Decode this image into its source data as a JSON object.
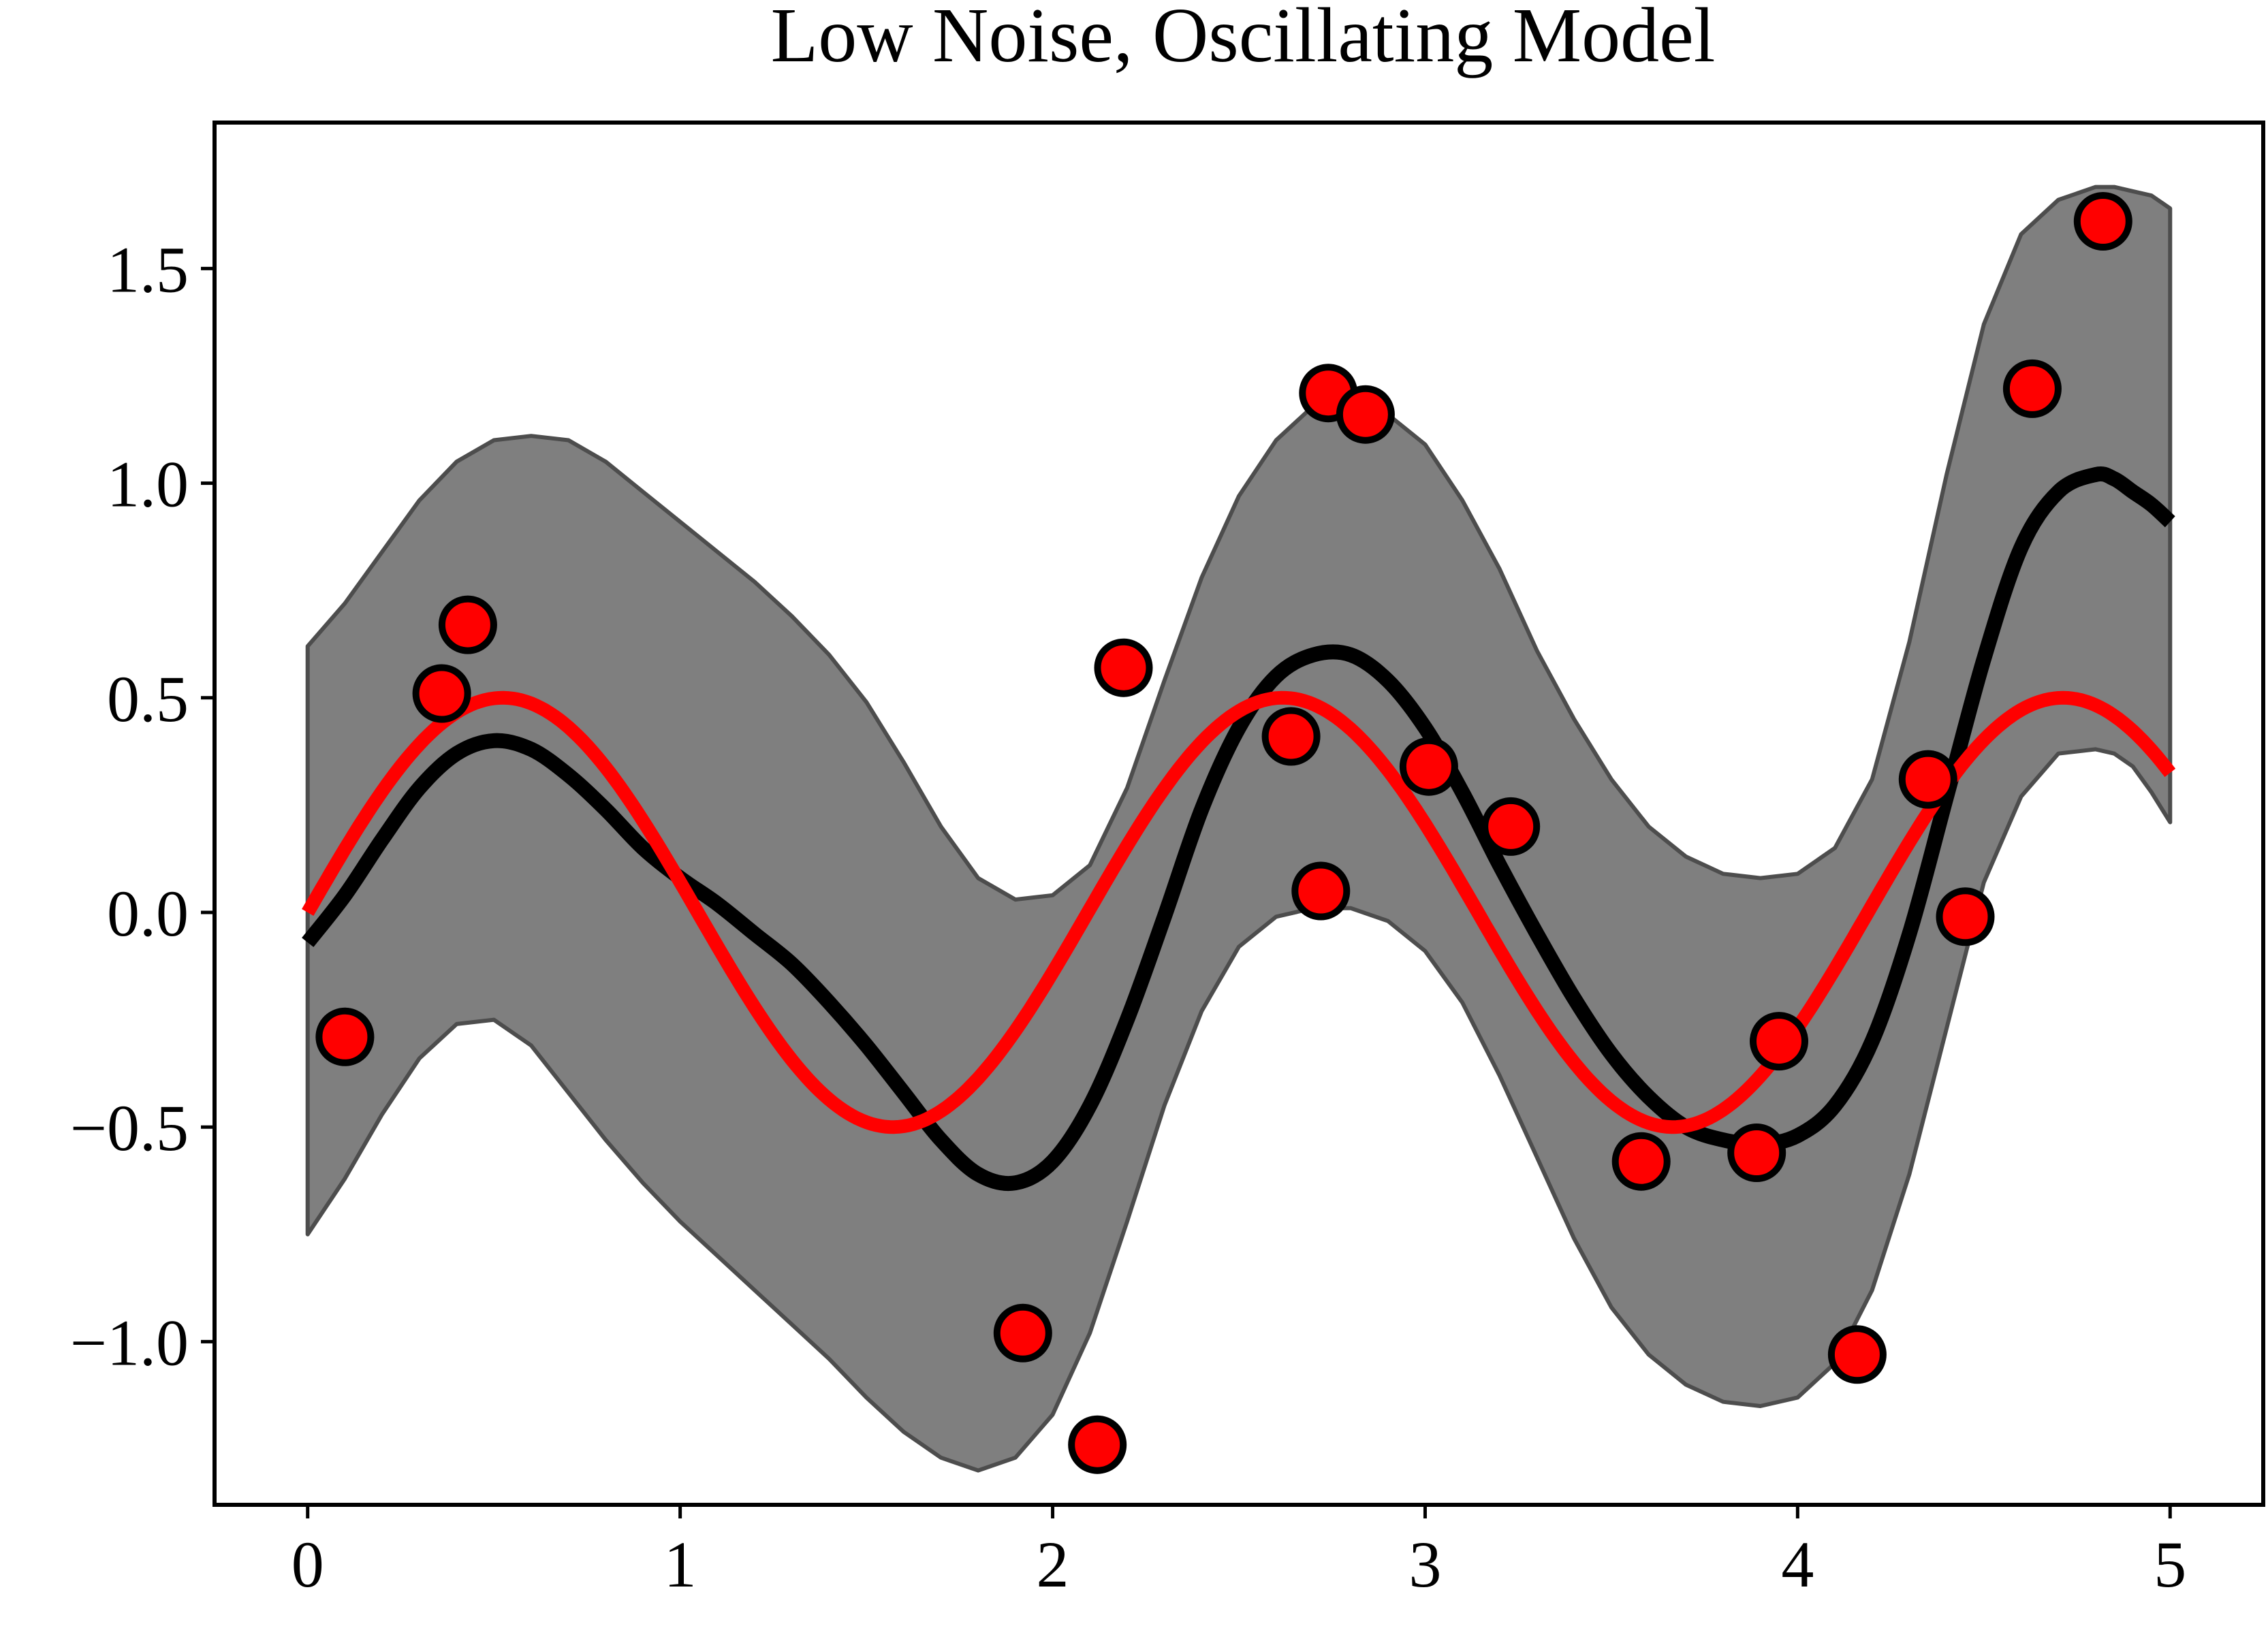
{
  "chart_data": {
    "type": "line",
    "title": "Low Noise, Oscillating Model",
    "xlabel": "",
    "ylabel": "",
    "xlim": [
      -0.25,
      5.25
    ],
    "ylim": [
      -1.38,
      1.84
    ],
    "x_ticks": [
      0,
      1,
      2,
      3,
      4,
      5
    ],
    "x_tick_labels": [
      "0",
      "1",
      "2",
      "3",
      "4",
      "5"
    ],
    "y_ticks": [
      -1.0,
      -0.5,
      0.0,
      0.5,
      1.0,
      1.5
    ],
    "y_tick_labels": [
      "−1.0",
      "−0.5",
      "0.0",
      "0.5",
      "1.0",
      "1.5"
    ],
    "grid": false,
    "legend": "none",
    "colors": {
      "band_fill": "#7f7f7f",
      "band_edge": "#4d4d4d",
      "mean_line": "#000000",
      "true_line": "#ff0000",
      "points_fill": "#ff0000",
      "points_edge": "#000000"
    },
    "band": {
      "x": [
        0,
        0.1,
        0.2,
        0.3,
        0.4,
        0.5,
        0.6,
        0.7,
        0.8,
        0.9,
        1.0,
        1.1,
        1.2,
        1.3,
        1.4,
        1.5,
        1.6,
        1.7,
        1.8,
        1.9,
        2.0,
        2.1,
        2.2,
        2.3,
        2.4,
        2.5,
        2.6,
        2.7,
        2.8,
        2.9,
        3.0,
        3.1,
        3.2,
        3.3,
        3.4,
        3.5,
        3.6,
        3.7,
        3.8,
        3.9,
        4.0,
        4.1,
        4.2,
        4.3,
        4.4,
        4.5,
        4.6,
        4.7,
        4.8,
        4.85,
        4.9,
        4.95,
        5.0
      ],
      "lower": [
        -0.75,
        -0.62,
        -0.47,
        -0.34,
        -0.26,
        -0.25,
        -0.31,
        -0.42,
        -0.53,
        -0.63,
        -0.72,
        -0.8,
        -0.88,
        -0.96,
        -1.04,
        -1.13,
        -1.21,
        -1.27,
        -1.3,
        -1.27,
        -1.17,
        -0.98,
        -0.72,
        -0.45,
        -0.23,
        -0.08,
        -0.01,
        0.01,
        0.01,
        -0.02,
        -0.09,
        -0.21,
        -0.38,
        -0.57,
        -0.76,
        -0.92,
        -1.03,
        -1.1,
        -1.14,
        -1.15,
        -1.13,
        -1.05,
        -0.88,
        -0.61,
        -0.27,
        0.07,
        0.27,
        0.37,
        0.38,
        0.37,
        0.34,
        0.28,
        0.21
      ],
      "upper": [
        0.62,
        0.72,
        0.84,
        0.96,
        1.05,
        1.1,
        1.11,
        1.1,
        1.05,
        0.98,
        0.91,
        0.84,
        0.77,
        0.69,
        0.6,
        0.49,
        0.35,
        0.2,
        0.08,
        0.03,
        0.04,
        0.11,
        0.29,
        0.54,
        0.78,
        0.97,
        1.1,
        1.18,
        1.2,
        1.16,
        1.09,
        0.96,
        0.8,
        0.61,
        0.45,
        0.31,
        0.2,
        0.13,
        0.09,
        0.08,
        0.09,
        0.15,
        0.31,
        0.63,
        1.02,
        1.37,
        1.58,
        1.66,
        1.69,
        1.69,
        1.68,
        1.67,
        1.64
      ]
    },
    "series": [
      {
        "x": [
          0,
          0.1,
          0.2,
          0.3,
          0.4,
          0.5,
          0.6,
          0.7,
          0.8,
          0.9,
          1.0,
          1.1,
          1.2,
          1.3,
          1.4,
          1.5,
          1.6,
          1.7,
          1.8,
          1.9,
          2.0,
          2.1,
          2.2,
          2.3,
          2.4,
          2.5,
          2.6,
          2.7,
          2.8,
          2.9,
          3.0,
          3.1,
          3.2,
          3.3,
          3.4,
          3.5,
          3.6,
          3.7,
          3.8,
          3.9,
          4.0,
          4.1,
          4.2,
          4.3,
          4.4,
          4.5,
          4.6,
          4.7,
          4.8,
          4.85,
          4.9,
          4.95,
          5.0
        ],
        "values": [
          -0.07,
          0.04,
          0.17,
          0.29,
          0.37,
          0.4,
          0.38,
          0.32,
          0.24,
          0.15,
          0.08,
          0.02,
          -0.05,
          -0.12,
          -0.21,
          -0.31,
          -0.42,
          -0.53,
          -0.61,
          -0.63,
          -0.58,
          -0.45,
          -0.25,
          -0.01,
          0.24,
          0.43,
          0.55,
          0.6,
          0.6,
          0.54,
          0.43,
          0.28,
          0.11,
          -0.05,
          -0.2,
          -0.33,
          -0.43,
          -0.5,
          -0.53,
          -0.54,
          -0.52,
          -0.45,
          -0.3,
          -0.05,
          0.27,
          0.59,
          0.85,
          0.98,
          1.02,
          1.01,
          0.98,
          0.95,
          0.91
        ]
      },
      {
        "function": "0.5*sin(3x)",
        "x_range": [
          0,
          5
        ],
        "values_at_peaks": [
          {
            "x": 0.52,
            "y": 0.5
          },
          {
            "x": 1.57,
            "y": -0.5
          },
          {
            "x": 2.62,
            "y": 0.5
          },
          {
            "x": 3.67,
            "y": -0.5
          },
          {
            "x": 4.71,
            "y": 0.5
          }
        ]
      }
    ],
    "points": {
      "x": [
        0.1,
        0.36,
        0.43,
        1.92,
        2.12,
        2.19,
        2.64,
        2.72,
        2.74,
        2.84,
        3.01,
        3.23,
        3.58,
        3.89,
        3.95,
        4.16,
        4.35,
        4.45,
        4.63,
        4.82
      ],
      "y": [
        -0.29,
        0.51,
        0.67,
        -0.98,
        -1.24,
        0.57,
        0.41,
        0.05,
        1.21,
        1.16,
        0.34,
        0.2,
        -0.58,
        -0.56,
        -0.3,
        -1.03,
        0.31,
        -0.01,
        1.22,
        1.61
      ]
    }
  }
}
